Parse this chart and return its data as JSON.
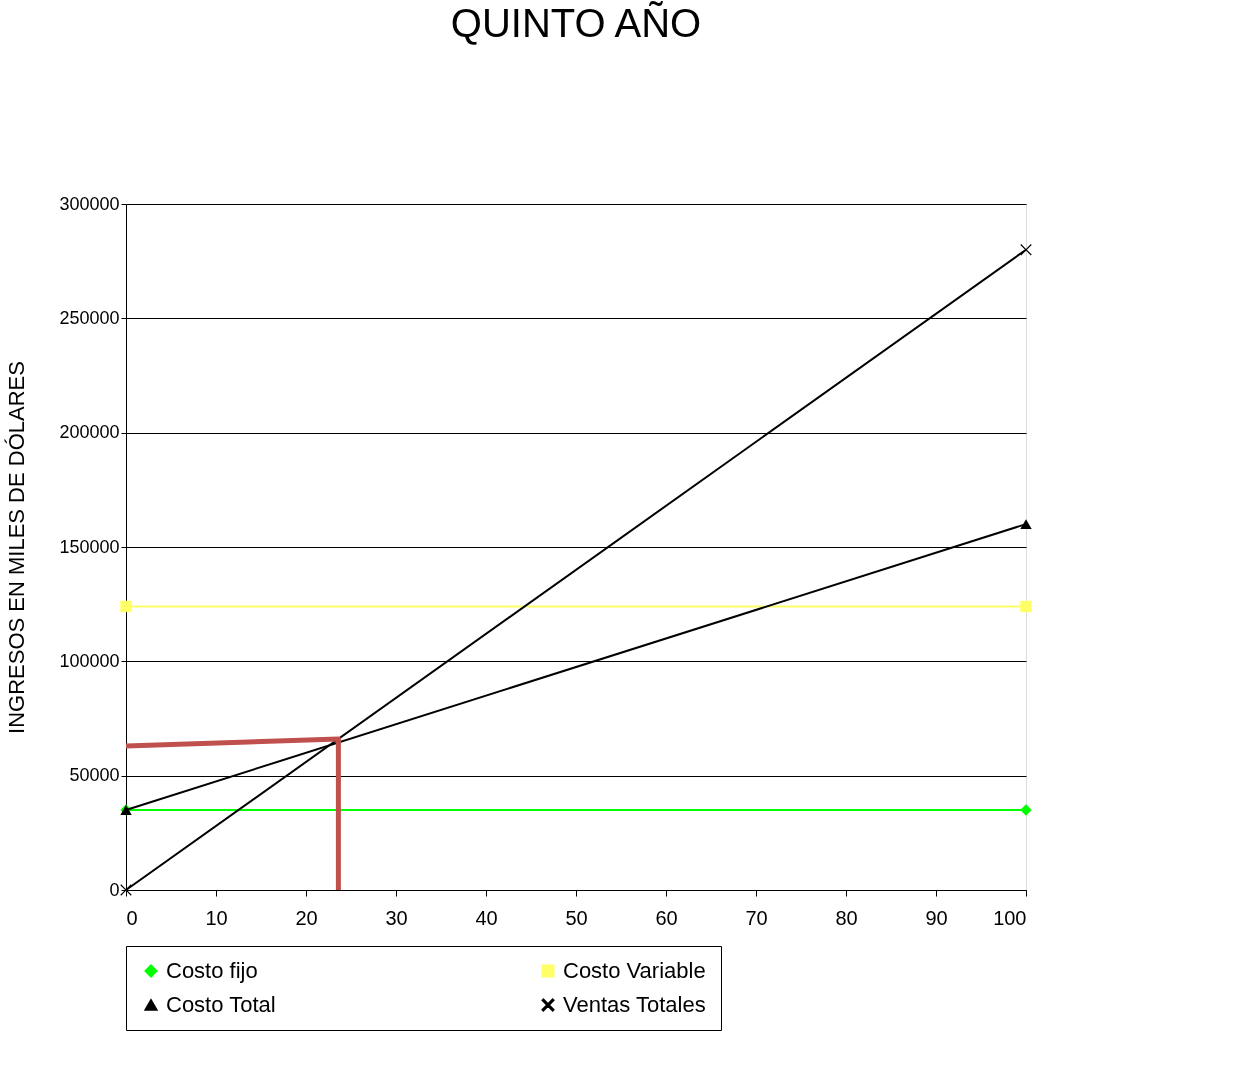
{
  "chart_data": {
    "type": "line",
    "title": "QUINTO AÑO",
    "ylabel": "INGRESOS EN MILES DE DÓLARES",
    "xlim": [
      0,
      100
    ],
    "xticks": [
      0,
      10,
      20,
      30,
      40,
      50,
      60,
      70,
      80,
      90,
      100
    ],
    "ylim": [
      0,
      300000
    ],
    "yticks": [
      0,
      50000,
      100000,
      150000,
      200000,
      250000,
      300000
    ],
    "grid": "y",
    "legend": "bottom",
    "series": [
      {
        "name": "Costo fijo",
        "color": "#00ff00",
        "marker": "diamond",
        "x": [
          0,
          100
        ],
        "values": [
          35000,
          35000
        ]
      },
      {
        "name": "Costo Variable",
        "color": "#ffff66",
        "marker": "square",
        "x": [
          0,
          100
        ],
        "values": [
          124000,
          124000
        ]
      },
      {
        "name": "Costo Total",
        "color": "#000000",
        "marker": "triangle",
        "x": [
          0,
          100
        ],
        "values": [
          35000,
          160000
        ]
      },
      {
        "name": "Ventas Totales",
        "color": "#000000",
        "marker": "cross",
        "x": [
          0,
          100
        ],
        "values": [
          0,
          280000
        ]
      },
      {
        "color": "#c0504d",
        "marker": "none",
        "x": [
          0,
          23.6,
          23.6
        ],
        "values": [
          63000,
          66000,
          0
        ]
      }
    ]
  }
}
